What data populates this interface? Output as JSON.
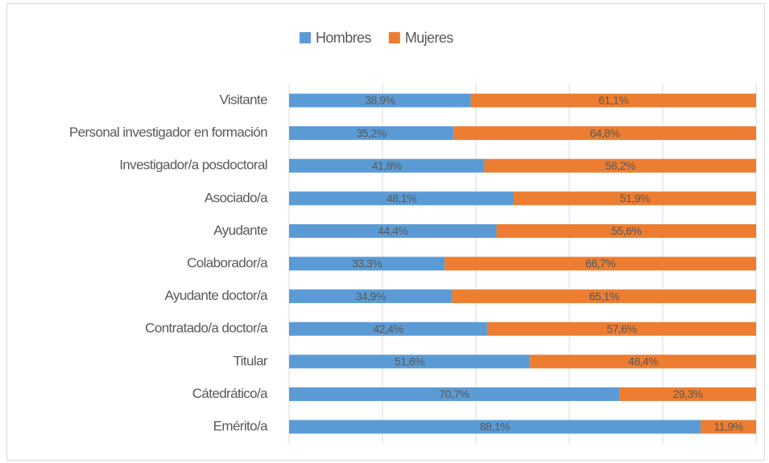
{
  "chart_data": {
    "type": "stacked-bar-horizontal",
    "categories": [
      "Visitante",
      "Personal investigador en formación",
      "Investigador/a posdoctoral",
      "Asociado/a",
      "Ayudante",
      "Colaborador/a",
      "Ayudante doctor/a",
      "Contratado/a doctor/a",
      "Titular",
      "Cátedrático/a",
      "Emérito/a"
    ],
    "series": [
      {
        "name": "Hombres",
        "color": "#5b9bd5",
        "values": [
          38.9,
          35.2,
          41.8,
          48.1,
          44.4,
          33.3,
          34.9,
          42.4,
          51.6,
          70.7,
          88.1
        ],
        "value_labels": [
          "38,9%",
          "35,2%",
          "41,8%",
          "48,1%",
          "44,4%",
          "33,3%",
          "34,9%",
          "42,4%",
          "51,6%",
          "70,7%",
          "88,1%"
        ]
      },
      {
        "name": "Mujeres",
        "color": "#ed7d31",
        "values": [
          61.1,
          64.8,
          58.2,
          51.9,
          55.6,
          66.7,
          65.1,
          57.6,
          48.4,
          29.3,
          11.9
        ],
        "value_labels": [
          "61,1%",
          "64,8%",
          "58,2%",
          "51,9%",
          "55,6%",
          "66,7%",
          "65,1%",
          "57,6%",
          "48,4%",
          "29,3%",
          "11,9%"
        ]
      }
    ],
    "xlim": [
      0,
      100
    ],
    "xticks": [
      0,
      20,
      40,
      60,
      80,
      100
    ],
    "grid": true,
    "legend": "top"
  }
}
